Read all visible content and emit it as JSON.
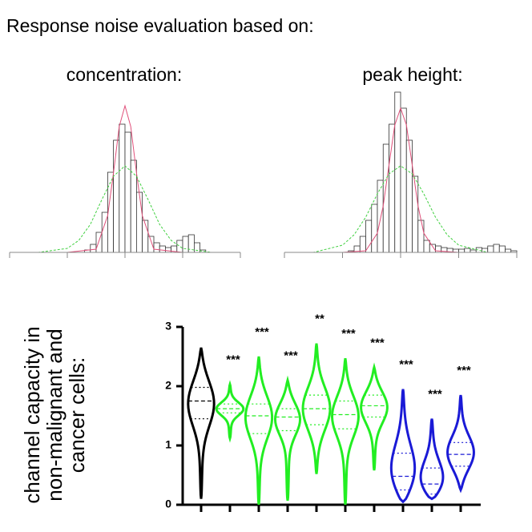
{
  "title": "Response noise evaluation based on:",
  "chart_data": [
    {
      "type": "histogram",
      "title": "concentration:",
      "bins": [
        1.3,
        1.4,
        1.5,
        1.6,
        1.7,
        1.8,
        1.9,
        2.0,
        2.1,
        2.2,
        2.3,
        2.4,
        2.5,
        2.6,
        2.7,
        2.8,
        2.9,
        3.0,
        3.1,
        3.2,
        3.3,
        3.4
      ],
      "counts": [
        3,
        10,
        25,
        50,
        100,
        140,
        160,
        150,
        115,
        75,
        40,
        20,
        12,
        8,
        6,
        8,
        15,
        20,
        22,
        12,
        3
      ],
      "color": "#333333",
      "xlim": [
        0,
        4
      ],
      "xticks": [
        0,
        1,
        2,
        3,
        4
      ],
      "ylim": [
        0,
        210
      ],
      "fits": [
        {
          "color": "#e0507a",
          "style": "solid",
          "x": [
            0,
            1,
            1.5,
            1.7,
            1.8,
            1.9,
            2.0,
            2.1,
            2.2,
            2.3,
            2.5,
            3,
            4
          ],
          "values": [
            0,
            0,
            4,
            46,
            99,
            157,
            183,
            157,
            99,
            46,
            4,
            0,
            0
          ]
        },
        {
          "color": "#40d040",
          "style": "dashed",
          "x": [
            0,
            0.5,
            1,
            1.2,
            1.4,
            1.6,
            1.8,
            2.0,
            2.2,
            2.4,
            2.6,
            2.8,
            3,
            3.5,
            4
          ],
          "values": [
            0,
            0,
            5,
            15,
            35,
            66,
            95,
            108,
            95,
            66,
            35,
            15,
            5,
            0,
            0
          ]
        }
      ]
    },
    {
      "type": "histogram",
      "title": "peak height:",
      "bins": [
        1.1,
        1.2,
        1.3,
        1.4,
        1.5,
        1.6,
        1.7,
        1.8,
        1.9,
        2.0,
        2.1,
        2.2,
        2.3,
        2.4,
        2.5,
        2.6,
        2.7,
        2.8,
        2.9,
        3.0,
        3.1,
        3.2,
        3.3,
        3.4,
        3.5,
        3.6,
        3.7,
        3.8,
        3.9,
        4.0
      ],
      "counts": [
        2,
        8,
        20,
        40,
        60,
        90,
        135,
        160,
        200,
        180,
        140,
        95,
        40,
        15,
        10,
        8,
        6,
        5,
        4,
        4,
        5,
        3,
        6,
        5,
        8,
        10,
        8,
        4,
        2
      ],
      "color": "#333333",
      "xlim": [
        0,
        4
      ],
      "xticks": [
        0,
        1,
        2,
        3,
        4
      ],
      "ylim": [
        0,
        210
      ],
      "fits": [
        {
          "color": "#e0507a",
          "style": "solid",
          "x": [
            0,
            1,
            1.4,
            1.6,
            1.7,
            1.8,
            1.9,
            2.0,
            2.1,
            2.2,
            2.3,
            2.4,
            2.6,
            3,
            4
          ],
          "values": [
            0,
            0,
            2,
            24,
            58,
            109,
            159,
            180,
            159,
            109,
            58,
            24,
            2,
            0,
            0
          ]
        },
        {
          "color": "#40d040",
          "style": "dashed",
          "x": [
            0,
            0.5,
            1,
            1.2,
            1.4,
            1.6,
            1.8,
            2.0,
            2.2,
            2.4,
            2.6,
            2.8,
            3,
            3.5,
            4
          ],
          "values": [
            0,
            0,
            9,
            22,
            44,
            73,
            98,
            108,
            98,
            73,
            44,
            22,
            9,
            0,
            0
          ]
        }
      ]
    },
    {
      "type": "violin",
      "y_label": [
        "channel capacity in",
        "non-malignant and",
        "cancer cells:"
      ],
      "categories": [
        null,
        null,
        null,
        null,
        null,
        null,
        null,
        null,
        null,
        null
      ],
      "colors": [
        "#000000",
        "#22ee22",
        "#22ee22",
        "#22ee22",
        "#22ee22",
        "#22ee22",
        "#22ee22",
        "#1a1ad6",
        "#1a1ad6",
        "#1a1ad6"
      ],
      "min": [
        0.1,
        1.12,
        0,
        0.07,
        0.52,
        0,
        0.58,
        0.05,
        0.1,
        0.25
      ],
      "q1": [
        1.45,
        1.55,
        1.2,
        1.25,
        1.35,
        1.28,
        1.48,
        0.25,
        0.18,
        0.65
      ],
      "median": [
        1.75,
        1.62,
        1.5,
        1.48,
        1.62,
        1.52,
        1.67,
        0.48,
        0.35,
        0.85
      ],
      "q3": [
        1.98,
        1.7,
        1.7,
        1.62,
        1.85,
        1.75,
        1.85,
        0.87,
        0.62,
        1.05
      ],
      "max": [
        2.65,
        2.03,
        2.5,
        2.1,
        2.72,
        2.47,
        2.32,
        1.95,
        1.45,
        1.85
      ],
      "annotations": [
        null,
        "***",
        "***",
        "***",
        "**",
        "***",
        "***",
        "***",
        "***",
        "***"
      ],
      "ylim": [
        0,
        3
      ],
      "yticks": [
        0,
        1,
        2,
        3
      ]
    }
  ]
}
